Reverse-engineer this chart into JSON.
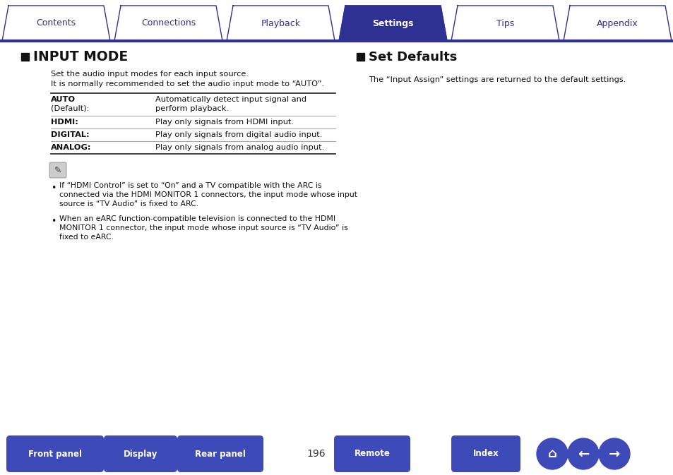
{
  "bg_color": "#ffffff",
  "tab_active_bg": "#2e3192",
  "tab_inactive_bg": "#ffffff",
  "tab_border": "#2e3192",
  "tab_active_fg": "#ffffff",
  "tab_inactive_fg": "#2e3192",
  "tabs": [
    "Contents",
    "Connections",
    "Playback",
    "Settings",
    "Tips",
    "Appendix"
  ],
  "active_tab_idx": 3,
  "s1_title": "INPUT MODE",
  "s1_intro1": "Set the audio input modes for each input source.",
  "s1_intro2": "It is normally recommended to set the audio input mode to “AUTO”.",
  "table": [
    {
      "key_bold": "AUTO",
      "key_normal": "(Default):",
      "val": "Automatically detect input signal and\nperform playback."
    },
    {
      "key_bold": "HDMI:",
      "key_normal": "",
      "val": "Play only signals from HDMI input."
    },
    {
      "key_bold": "DIGITAL:",
      "key_normal": "",
      "val": "Play only signals from digital audio input."
    },
    {
      "key_bold": "ANALOG:",
      "key_normal": "",
      "val": "Play only signals from analog audio input."
    }
  ],
  "note1": "If “HDMI Control” is set to “On” and a TV compatible with the ARC is\nconnected via the HDMI MONITOR 1 connectors, the input mode whose input\nsource is “TV Audio” is fixed to ARC.",
  "note2": "When an eARC function-compatible television is connected to the HDMI\nMONITOR 1 connector, the input mode whose input source is “TV Audio” is\nfixed to eARC.",
  "s2_title": "Set Defaults",
  "s2_text": "The “Input Assign” settings are returned to the default settings.",
  "page_num": "196",
  "btm_btns": [
    "Front panel",
    "Display",
    "Rear panel",
    "Remote",
    "Index"
  ],
  "btn_blue": "#3d4ab8",
  "divider_blue": "#2e3192",
  "text_dark": "#1a1a1a",
  "tab_line_color": "#2e3192"
}
